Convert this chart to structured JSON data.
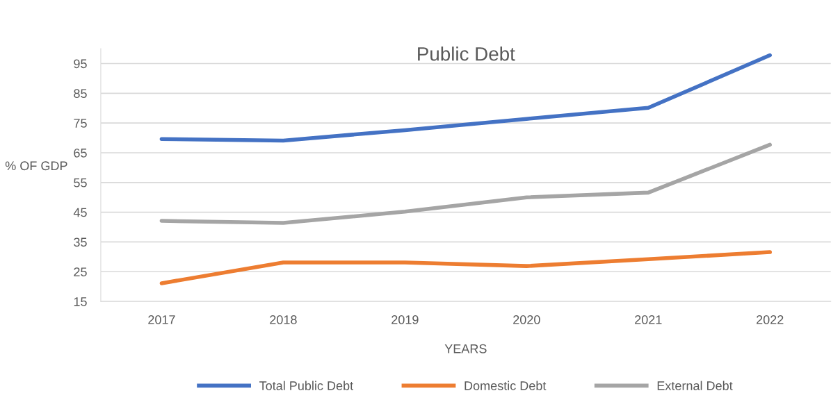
{
  "chart_data": {
    "type": "line",
    "title": "Public Debt",
    "xlabel": "YEARS",
    "ylabel": "% OF GDP",
    "categories": [
      "2017",
      "2018",
      "2019",
      "2020",
      "2021",
      "2022"
    ],
    "series": [
      {
        "name": "Total Public Debt",
        "color": "#4472c4",
        "values": [
          69.6,
          69.1,
          72.6,
          76.4,
          80.1,
          97.8
        ]
      },
      {
        "name": "Domestic Debt",
        "color": "#ed7d31",
        "values": [
          21.1,
          28.1,
          28.1,
          26.9,
          29.2,
          31.6
        ]
      },
      {
        "name": "External Debt",
        "color": "#a5a5a5",
        "values": [
          42.1,
          41.4,
          45.2,
          50.0,
          51.6,
          67.7
        ]
      }
    ],
    "ylim": [
      15,
      100
    ],
    "yticks": [
      15,
      25,
      35,
      45,
      55,
      65,
      75,
      85,
      95
    ],
    "grid": "y",
    "legend": "bottom",
    "marker": "none",
    "line_style": "solid"
  }
}
